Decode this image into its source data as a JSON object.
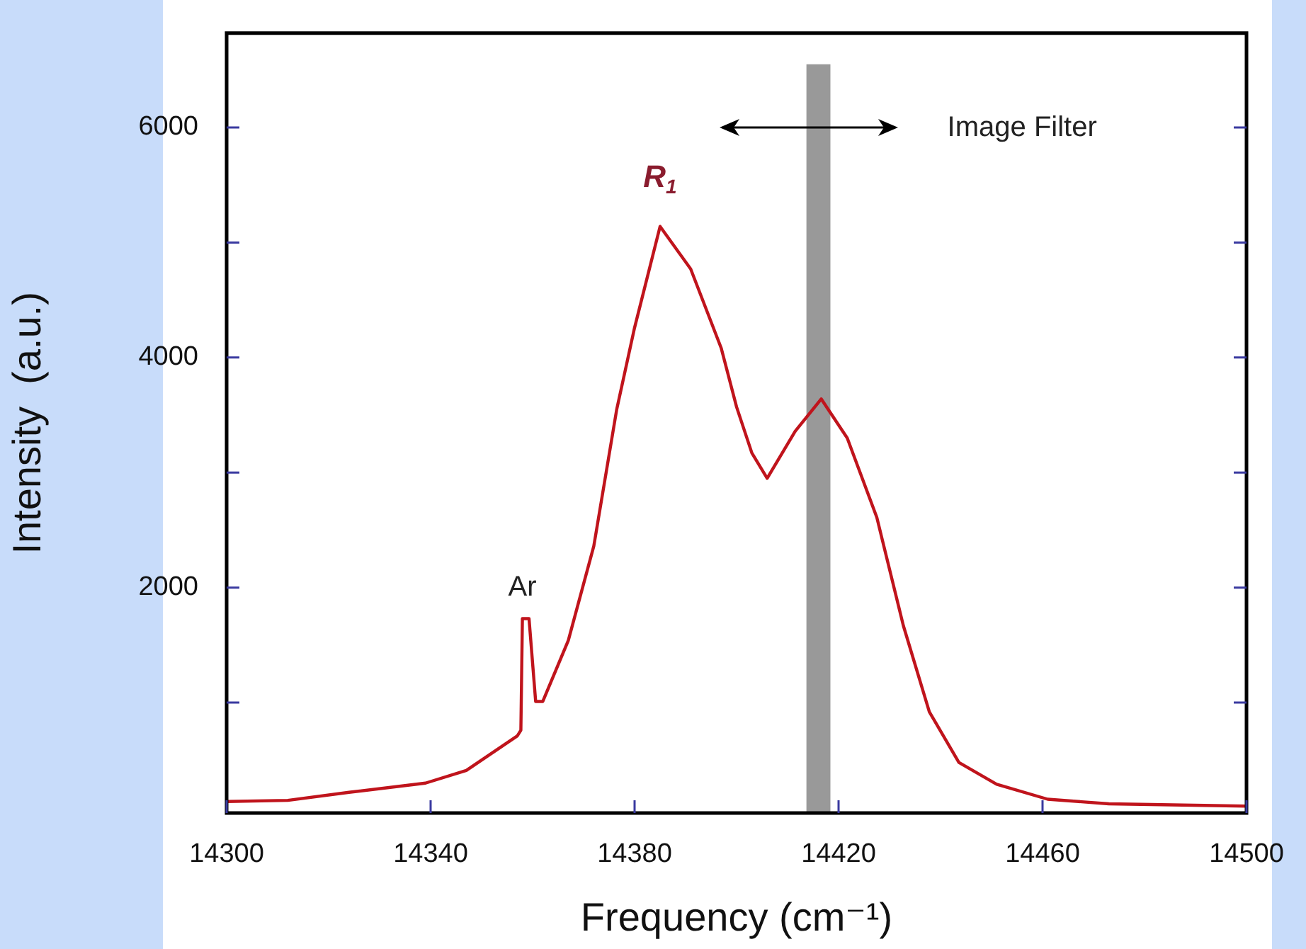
{
  "chart_data": {
    "type": "line",
    "xlabel": "Frequency (cm⁻¹)",
    "ylabel": "Intensity  (a.u.)",
    "xlim": [
      14300,
      14500
    ],
    "xticks": [
      14300,
      14340,
      14380,
      14420,
      14460,
      14500
    ],
    "ylim": [
      40,
      6820
    ],
    "yticks": [
      {
        "value": 1000,
        "label": null
      },
      2000,
      {
        "value": 3000,
        "label": null
      },
      4000,
      {
        "value": 5000,
        "label": null
      },
      6000
    ],
    "grid": false,
    "legend": false,
    "marker": "none",
    "line_style": "solid",
    "series": [
      {
        "color": "#c0141c",
        "x": [
          14300,
          14312,
          14324,
          14339,
          14347,
          14357,
          14357.7,
          14358,
          14359.3,
          14360.6,
          14362,
          14367,
          14372,
          14376.5,
          14380,
          14385,
          14391,
          14397,
          14400,
          14403,
          14406,
          14411.5,
          14416.6,
          14421.7,
          14427.5,
          14432.7,
          14437.8,
          14443.6,
          14451,
          14461,
          14473,
          14500
        ],
        "values": [
          140,
          150,
          220,
          300,
          410,
          710,
          760,
          1730,
          1730,
          1010,
          1010,
          1540,
          2360,
          3550,
          4260,
          5140,
          4770,
          4080,
          3570,
          3170,
          2950,
          3360,
          3640,
          3300,
          2610,
          1670,
          920,
          480,
          290,
          160,
          120,
          100
        ]
      }
    ],
    "bands": [
      {
        "axis": "x",
        "from": 14413.7,
        "to": 14418.4,
        "color": "#999999"
      }
    ],
    "annotations": [
      {
        "text": "R$_{1}$",
        "x": 14385,
        "y": 5140
      },
      {
        "text": "Ar",
        "x": 14358,
        "y": 1730
      },
      "Image Filter"
    ]
  }
}
